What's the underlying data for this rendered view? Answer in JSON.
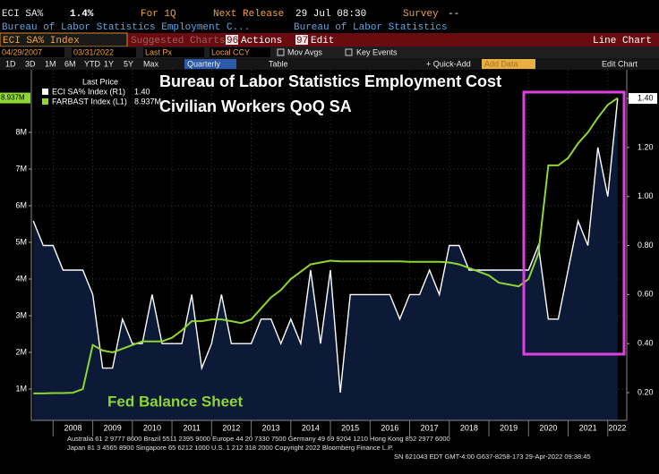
{
  "header": {
    "ticker": "ECI SA%",
    "value": "1.4%",
    "period": "For 1Q",
    "next_release_label": "Next Release",
    "next_release": "29 Jul 08:30",
    "survey_label": "Survey",
    "survey": "--",
    "description": "Bureau of Labor Statistics Employment C...",
    "source": "Bureau of Labor Statistics"
  },
  "toolbar": {
    "security": "ECI SA% Index",
    "suggested": "Suggested Charts",
    "actions_num": "96",
    "actions": "Actions",
    "edit_num": "97",
    "edit": "Edit",
    "chart_type": "Line Chart",
    "start_date": "04/29/2007",
    "end_date": "03/31/2022",
    "field": "Last Px",
    "currency": "Local CCY",
    "mov_avgs": "Mov Avgs",
    "key_events": "Key Events",
    "ranges": [
      "1D",
      "3D",
      "1M",
      "6M",
      "YTD",
      "1Y",
      "5Y",
      "Max"
    ],
    "frequency": "Quarterly",
    "table": "Table",
    "quick_add": "+ Quick-Add",
    "add_data": "Add Data",
    "edit_chart": "Edit Chart"
  },
  "chart_data": {
    "type": "line",
    "title": "Bureau of Labor Statistics Employment Cost Civilian Workers QoQ SA",
    "annotation": "Fed Balance Sheet",
    "legend_title": "Last Price",
    "x": [
      2007.5,
      2007.75,
      2008,
      2008.25,
      2008.5,
      2008.75,
      2009,
      2009.25,
      2009.5,
      2009.75,
      2010,
      2010.25,
      2010.5,
      2010.75,
      2011,
      2011.25,
      2011.5,
      2011.75,
      2012,
      2012.25,
      2012.5,
      2012.75,
      2013,
      2013.25,
      2013.5,
      2013.75,
      2014,
      2014.25,
      2014.5,
      2014.75,
      2015,
      2015.25,
      2015.5,
      2015.75,
      2016,
      2016.25,
      2016.5,
      2016.75,
      2017,
      2017.25,
      2017.5,
      2017.75,
      2018,
      2018.25,
      2018.5,
      2018.75,
      2019,
      2019.25,
      2019.5,
      2019.75,
      2020,
      2020.25,
      2020.5,
      2020.75,
      2021,
      2021.25,
      2021.5,
      2021.75,
      2022,
      2022.25
    ],
    "xlim": [
      2007.45,
      2022.48
    ],
    "xticks": [
      2008,
      2009,
      2010,
      2011,
      2012,
      2013,
      2014,
      2015,
      2016,
      2017,
      2018,
      2019,
      2020,
      2021,
      2022
    ],
    "ylim": [
      146000,
      9707000
    ],
    "yticks": [
      {
        "value": 1000000,
        "label": "1M"
      },
      {
        "value": 2000000,
        "label": "2M"
      },
      {
        "value": 3000000,
        "label": "3M"
      },
      {
        "value": 4000000,
        "label": "4M"
      },
      {
        "value": 5000000,
        "label": "5M"
      },
      {
        "value": 6000000,
        "label": "6M"
      },
      {
        "value": 7000000,
        "label": "7M"
      },
      {
        "value": 8000000,
        "label": "8M"
      }
    ],
    "y2lim": [
      0.087,
      1.517
    ],
    "y2ticks": [
      {
        "value": 0.2,
        "label": "0.20"
      },
      {
        "value": 0.4,
        "label": "0.40"
      },
      {
        "value": 0.6,
        "label": "0.60"
      },
      {
        "value": 0.8,
        "label": "0.80"
      },
      {
        "value": 1,
        "label": "1.00"
      },
      {
        "value": 1.2,
        "label": "1.20"
      },
      {
        "value": 1.4,
        "label": "1.40"
      }
    ],
    "grid": true,
    "series": [
      {
        "name": "ECI SA% Index (R1)",
        "color": "#ffffff",
        "fill": "#0c1a38",
        "axis": "y2",
        "last_label": "1.40",
        "values": [
          0.9,
          0.8,
          0.8,
          0.7,
          0.7,
          0.7,
          0.6,
          0.3,
          0.3,
          0.5,
          0.4,
          0.4,
          0.6,
          0.4,
          0.4,
          0.4,
          0.6,
          0.3,
          0.4,
          0.6,
          0.4,
          0.4,
          0.4,
          0.5,
          0.5,
          0.4,
          0.5,
          0.4,
          0.7,
          0.4,
          0.7,
          0.2,
          0.6,
          0.6,
          0.6,
          0.6,
          0.6,
          0.5,
          0.6,
          0.6,
          0.7,
          0.6,
          0.8,
          0.8,
          0.7,
          0.7,
          0.7,
          0.7,
          0.7,
          0.7,
          0.7,
          0.8,
          0.5,
          0.5,
          0.7,
          0.9,
          0.8,
          1.2,
          1.0,
          1.4
        ]
      },
      {
        "name": "FARBAST Index (L1)",
        "color": "#8ed630",
        "last_label": "8.937M",
        "values": [
          880000,
          880000,
          890000,
          890000,
          900000,
          1000000,
          2200000,
          2050000,
          2000000,
          2100000,
          2200000,
          2300000,
          2300000,
          2300000,
          2400000,
          2600000,
          2850000,
          2850000,
          2900000,
          2900000,
          2850000,
          2800000,
          2900000,
          3200000,
          3500000,
          3700000,
          4000000,
          4200000,
          4400000,
          4450000,
          4500000,
          4480000,
          4480000,
          4480000,
          4480000,
          4480000,
          4480000,
          4480000,
          4470000,
          4470000,
          4470000,
          4470000,
          4450000,
          4400000,
          4300000,
          4200000,
          4100000,
          3900000,
          3850000,
          3800000,
          4000000,
          4700000,
          7100000,
          7100000,
          7300000,
          7700000,
          8000000,
          8400000,
          8750000,
          8937000
        ]
      }
    ]
  },
  "footer": {
    "lines": [
      "Australia 61 2 9777 8600 Brazil 5511 2395 9000 Europe 44 20 7330 7500 Germany 49 69 9204 1210 Hong Kong 852 2977 6000",
      "Japan 81 3 4565 8900        Singapore 65 6212 1000        U.S. 1 212 318 2000        Copyright 2022 Bloomberg Finance L.P.",
      "SN 621043 EDT  GMT-4:00 G637-8258-173 29-Apr-2022 09:38:45"
    ]
  }
}
